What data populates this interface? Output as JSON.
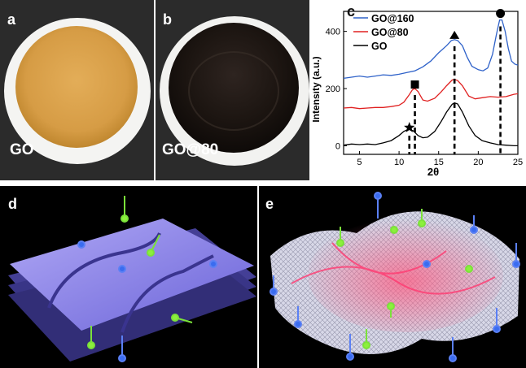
{
  "panels": {
    "a": {
      "label": "a",
      "sample": "GO"
    },
    "b": {
      "label": "b",
      "sample": "GO@80"
    },
    "c": {
      "label": "c"
    },
    "d": {
      "label": "d"
    },
    "e": {
      "label": "e"
    }
  },
  "colors": {
    "go_film": "#d9a24e",
    "go80_film": "#1c1511",
    "go160": "#2f62c9",
    "go80": "#e02020",
    "go": "#000000",
    "sheet_blue": "#8a86e8",
    "sheet_pink": "#ff6a8a",
    "molecule_green": "#8cf03c",
    "molecule_blue": "#3a6cf0"
  },
  "chart_data": {
    "type": "line",
    "xlabel": "2θ",
    "ylabel": "Intensity (a.u.)",
    "xlim": [
      3,
      25
    ],
    "ylim": [
      -30,
      470
    ],
    "xticks": [
      5,
      10,
      15,
      20,
      25
    ],
    "yticks": [
      0,
      200,
      400
    ],
    "legend": [
      "GO@160",
      "GO@80",
      "GO"
    ],
    "legend_position": "top-left",
    "series": [
      {
        "name": "GO@160",
        "color": "#2f62c9",
        "points": [
          [
            3,
            236
          ],
          [
            4,
            240
          ],
          [
            5,
            244
          ],
          [
            6,
            240
          ],
          [
            7,
            244
          ],
          [
            8,
            248
          ],
          [
            9,
            246
          ],
          [
            10,
            250
          ],
          [
            11,
            256
          ],
          [
            12,
            262
          ],
          [
            13,
            276
          ],
          [
            14,
            296
          ],
          [
            15,
            325
          ],
          [
            16,
            350
          ],
          [
            16.6,
            368
          ],
          [
            17,
            371
          ],
          [
            17.4,
            368
          ],
          [
            18,
            350
          ],
          [
            18.6,
            310
          ],
          [
            19.2,
            278
          ],
          [
            20,
            266
          ],
          [
            20.6,
            262
          ],
          [
            21.2,
            272
          ],
          [
            21.8,
            320
          ],
          [
            22.3,
            390
          ],
          [
            22.7,
            440
          ],
          [
            23,
            440
          ],
          [
            23.4,
            400
          ],
          [
            23.8,
            340
          ],
          [
            24.2,
            296
          ],
          [
            24.6,
            286
          ],
          [
            25,
            282
          ]
        ]
      },
      {
        "name": "GO@80",
        "color": "#e02020",
        "points": [
          [
            3,
            132
          ],
          [
            4,
            134
          ],
          [
            5,
            130
          ],
          [
            6,
            132
          ],
          [
            7,
            134
          ],
          [
            8,
            134
          ],
          [
            9,
            137
          ],
          [
            10,
            142
          ],
          [
            10.6,
            152
          ],
          [
            11.2,
            175
          ],
          [
            11.7,
            196
          ],
          [
            12,
            200
          ],
          [
            12.4,
            190
          ],
          [
            13,
            160
          ],
          [
            13.6,
            156
          ],
          [
            14.5,
            166
          ],
          [
            15.3,
            188
          ],
          [
            16,
            210
          ],
          [
            16.7,
            230
          ],
          [
            17,
            232
          ],
          [
            17.4,
            228
          ],
          [
            18,
            210
          ],
          [
            18.8,
            174
          ],
          [
            19.6,
            164
          ],
          [
            20.5,
            168
          ],
          [
            21.5,
            172
          ],
          [
            22.5,
            170
          ],
          [
            23.5,
            172
          ],
          [
            24.5,
            180
          ],
          [
            25,
            182
          ]
        ]
      },
      {
        "name": "GO",
        "color": "#000000",
        "points": [
          [
            3,
            2
          ],
          [
            4,
            6
          ],
          [
            5,
            4
          ],
          [
            6,
            6
          ],
          [
            7,
            4
          ],
          [
            8,
            10
          ],
          [
            9,
            18
          ],
          [
            10,
            36
          ],
          [
            10.6,
            50
          ],
          [
            11.2,
            58
          ],
          [
            11.8,
            52
          ],
          [
            12.4,
            36
          ],
          [
            13,
            28
          ],
          [
            13.6,
            30
          ],
          [
            14.5,
            50
          ],
          [
            15.3,
            84
          ],
          [
            16,
            118
          ],
          [
            16.7,
            145
          ],
          [
            17,
            150
          ],
          [
            17.4,
            146
          ],
          [
            18,
            118
          ],
          [
            18.8,
            70
          ],
          [
            19.6,
            36
          ],
          [
            20.5,
            18
          ],
          [
            21.5,
            10
          ],
          [
            22.5,
            4
          ],
          [
            23.5,
            2
          ],
          [
            24.5,
            0
          ],
          [
            25,
            0
          ]
        ]
      }
    ],
    "annotations": [
      {
        "marker": "star",
        "x": 11.3,
        "y": 58
      },
      {
        "marker": "square",
        "x": 12.0,
        "y": 200
      },
      {
        "marker": "triangle",
        "x": 17.0,
        "y": 371
      },
      {
        "marker": "circle",
        "x": 22.8,
        "y": 440
      }
    ]
  }
}
